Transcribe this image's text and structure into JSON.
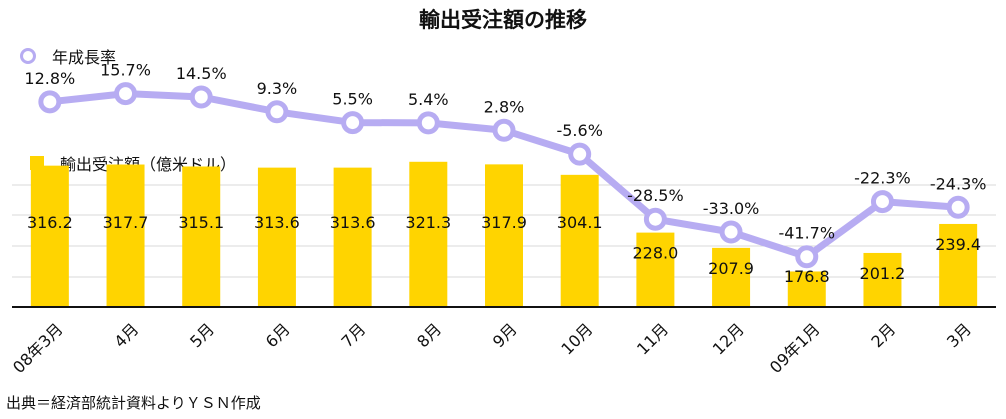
{
  "chart_data": {
    "type": "bar",
    "title": "輸出受注額の推移",
    "source": "出典＝経済部統計資料よりＹＳＮ作成",
    "categories": [
      "08年3月",
      "4月",
      "5月",
      "6月",
      "7月",
      "8月",
      "9月",
      "10月",
      "11月",
      "12月",
      "09年1月",
      "2月",
      "3月"
    ],
    "legend_position": "top-left",
    "grid": true,
    "series": [
      {
        "name": "輸出受注額（億米ドル）",
        "type": "bar",
        "color": "#ffd400",
        "values": [
          316.2,
          317.7,
          315.1,
          313.6,
          313.6,
          321.3,
          317.9,
          304.1,
          228.0,
          207.9,
          176.8,
          201.2,
          239.4
        ],
        "labels": [
          "316.2",
          "317.7",
          "315.1",
          "313.6",
          "313.6",
          "321.3",
          "317.9",
          "304.1",
          "228.0",
          "207.9",
          "176.8",
          "201.2",
          "239.4"
        ],
        "ylim": [
          130,
          350
        ]
      },
      {
        "name": "年成長率",
        "type": "line",
        "color": "#b7acf2",
        "values": [
          12.8,
          15.7,
          14.5,
          9.3,
          5.5,
          5.4,
          2.8,
          -5.6,
          -28.5,
          -33.0,
          -41.7,
          -22.3,
          -24.3
        ],
        "labels": [
          "12.8%",
          "15.7%",
          "14.5%",
          "9.3%",
          "5.5%",
          "5.4%",
          "2.8%",
          "-5.6%",
          "-28.5%",
          "-33.0%",
          "-41.7%",
          "-22.3%",
          "-24.3%"
        ],
        "ylim": [
          -71,
          24
        ]
      }
    ]
  }
}
